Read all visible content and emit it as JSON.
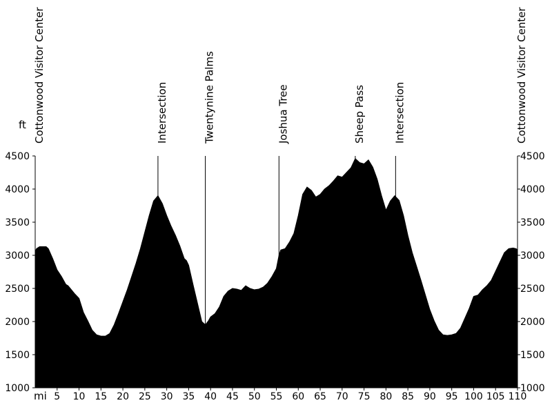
{
  "chart_data": {
    "type": "area",
    "title": "",
    "xlabel": "mi",
    "ylabel": "ft",
    "xlim": [
      0,
      110
    ],
    "ylim": [
      1000,
      4500
    ],
    "y_ticks": [
      1000,
      1500,
      2000,
      2500,
      3000,
      3500,
      4000,
      4500
    ],
    "x_ticks": [
      5,
      10,
      15,
      20,
      25,
      30,
      35,
      40,
      45,
      50,
      55,
      60,
      65,
      70,
      75,
      80,
      85,
      90,
      95,
      100,
      105,
      110
    ],
    "fill_color": "#000000",
    "grid": false,
    "waypoints": [
      {
        "label": "Cottonwood Visitor Center",
        "x": 0
      },
      {
        "label": "Intersection",
        "x": 28
      },
      {
        "label": "Twentynine Palms",
        "x": 38.8
      },
      {
        "label": "Joshua Tree",
        "x": 55.6
      },
      {
        "label": "Sheep Pass",
        "x": 73
      },
      {
        "label": "Intersection",
        "x": 82.2
      },
      {
        "label": "Cottonwood Visitor Center",
        "x": 110
      }
    ],
    "x": [
      0,
      0.3,
      1,
      2.5,
      3,
      4,
      5,
      6,
      7,
      7.5,
      8,
      9,
      10,
      11,
      12,
      13,
      14,
      15,
      16,
      17,
      18,
      19,
      20,
      21,
      22,
      23,
      24,
      25,
      26,
      27,
      28,
      29,
      30,
      31,
      32,
      33,
      34,
      34.5,
      35,
      36,
      37,
      38,
      38.8,
      39.5,
      40,
      41,
      42,
      43,
      44,
      45,
      46,
      47,
      48,
      49,
      50,
      51,
      52,
      53,
      54,
      55,
      55.6,
      56,
      57,
      58,
      59,
      60,
      61,
      62,
      63,
      64,
      65,
      66,
      67,
      68,
      69,
      70,
      71,
      72,
      73,
      74,
      75,
      76,
      77,
      78,
      79,
      80,
      81,
      82,
      83,
      84,
      85,
      86,
      87,
      88,
      89,
      90,
      91,
      92,
      93,
      94,
      95,
      96,
      97,
      98,
      99,
      100,
      101,
      102,
      103,
      104,
      105,
      106,
      107,
      108,
      109,
      109.7,
      110
    ],
    "y": [
      3060,
      3100,
      3130,
      3130,
      3100,
      2950,
      2780,
      2680,
      2560,
      2540,
      2500,
      2420,
      2350,
      2140,
      2010,
      1870,
      1800,
      1780,
      1780,
      1820,
      1950,
      2120,
      2300,
      2480,
      2680,
      2880,
      3100,
      3350,
      3600,
      3820,
      3900,
      3780,
      3600,
      3440,
      3300,
      3140,
      2950,
      2920,
      2850,
      2560,
      2280,
      2000,
      1950,
      2010,
      2070,
      2120,
      2220,
      2380,
      2460,
      2500,
      2490,
      2470,
      2540,
      2500,
      2480,
      2490,
      2520,
      2580,
      2680,
      2800,
      3000,
      3080,
      3100,
      3200,
      3330,
      3600,
      3920,
      4030,
      3980,
      3880,
      3920,
      4000,
      4050,
      4120,
      4200,
      4180,
      4250,
      4320,
      4460,
      4400,
      4380,
      4440,
      4330,
      4150,
      3900,
      3680,
      3820,
      3900,
      3830,
      3600,
      3300,
      3040,
      2830,
      2620,
      2400,
      2180,
      2010,
      1870,
      1800,
      1790,
      1800,
      1820,
      1900,
      2050,
      2200,
      2380,
      2400,
      2480,
      2540,
      2620,
      2760,
      2900,
      3040,
      3100,
      3110,
      3100,
      3080
    ]
  }
}
